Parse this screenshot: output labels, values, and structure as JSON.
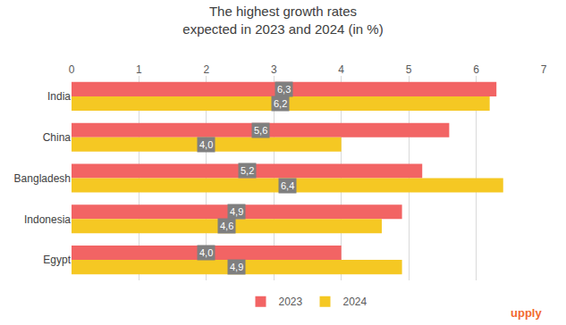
{
  "chart_data": {
    "type": "bar",
    "orientation": "horizontal",
    "title": "The highest growth rates\nexpected in 2023 and 2024 (in %)",
    "categories": [
      "India",
      "China",
      "Bangladesh",
      "Indonesia",
      "Egypt"
    ],
    "series": [
      {
        "name": "2023",
        "color": "#f26464",
        "values": [
          6.3,
          5.6,
          5.2,
          4.9,
          4.0
        ],
        "value_labels": [
          "6,3",
          "5,6",
          "5,2",
          "4,9",
          "4,0"
        ]
      },
      {
        "name": "2024",
        "color": "#f5c823",
        "values": [
          6.2,
          4.0,
          6.4,
          4.6,
          4.9
        ],
        "value_labels": [
          "6,2",
          "4,0",
          "6,4",
          "4,6",
          "4,9"
        ]
      }
    ],
    "xlim": [
      0,
      7
    ],
    "xticks": [
      0,
      1,
      2,
      3,
      4,
      5,
      6,
      7
    ],
    "grid": true,
    "legend": "bottom",
    "data_labels": true,
    "annotations": [
      "upply"
    ]
  }
}
